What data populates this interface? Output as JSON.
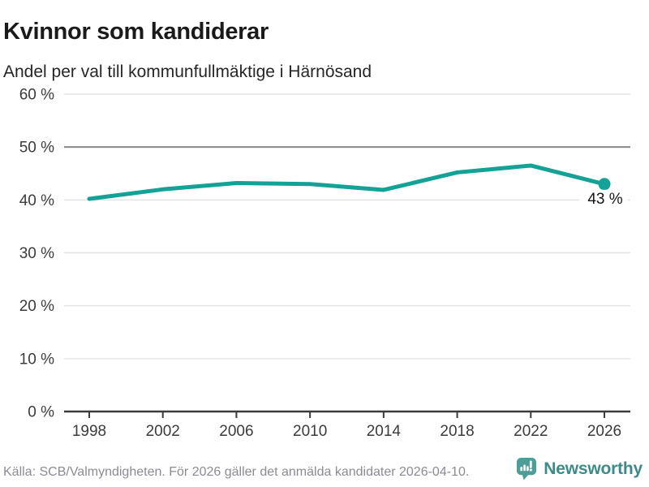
{
  "header": {
    "title": "Kvinnor som kandiderar",
    "subtitle": "Andel per val till kommunfullmäktige i Härnösand"
  },
  "chart_data": {
    "type": "line",
    "title": "Kvinnor som kandiderar",
    "subtitle": "Andel per val till kommunfullmäktige i Härnösand",
    "x": [
      1998,
      2002,
      2006,
      2010,
      2014,
      2018,
      2022,
      2026
    ],
    "xtick_labels": [
      "1998",
      "2002",
      "2006",
      "2010",
      "2014",
      "2018",
      "2022",
      "2026"
    ],
    "values": [
      40.2,
      42.0,
      43.2,
      43.0,
      41.9,
      45.2,
      46.5,
      43.0
    ],
    "unit": "%",
    "ylim": [
      0,
      60
    ],
    "yticks": [
      0,
      10,
      20,
      30,
      40,
      50,
      60
    ],
    "ytick_labels": [
      "0 %",
      "10 %",
      "20 %",
      "30 %",
      "40 %",
      "50 %",
      "60 %"
    ],
    "emphasized_gridline": 50,
    "end_point_label": "43 %",
    "grid": true,
    "legend": "none"
  },
  "footer": {
    "source": "Källa: SCB/Valmyndigheten. För 2026 gäller det anmälda kandidater 2026-04-10.",
    "brand": "Newsworthy"
  },
  "colors": {
    "line": "#13a295",
    "grid": "#e4e4e4",
    "grid_emphasis": "#8a8a8a",
    "axis": "#3b3b3b",
    "tick_text": "#3b3b3b",
    "end_label_text": "#141414",
    "title_text": "#1a1a1a",
    "footer_text": "#8b8b94",
    "brand_teal": "#4f9d98"
  }
}
